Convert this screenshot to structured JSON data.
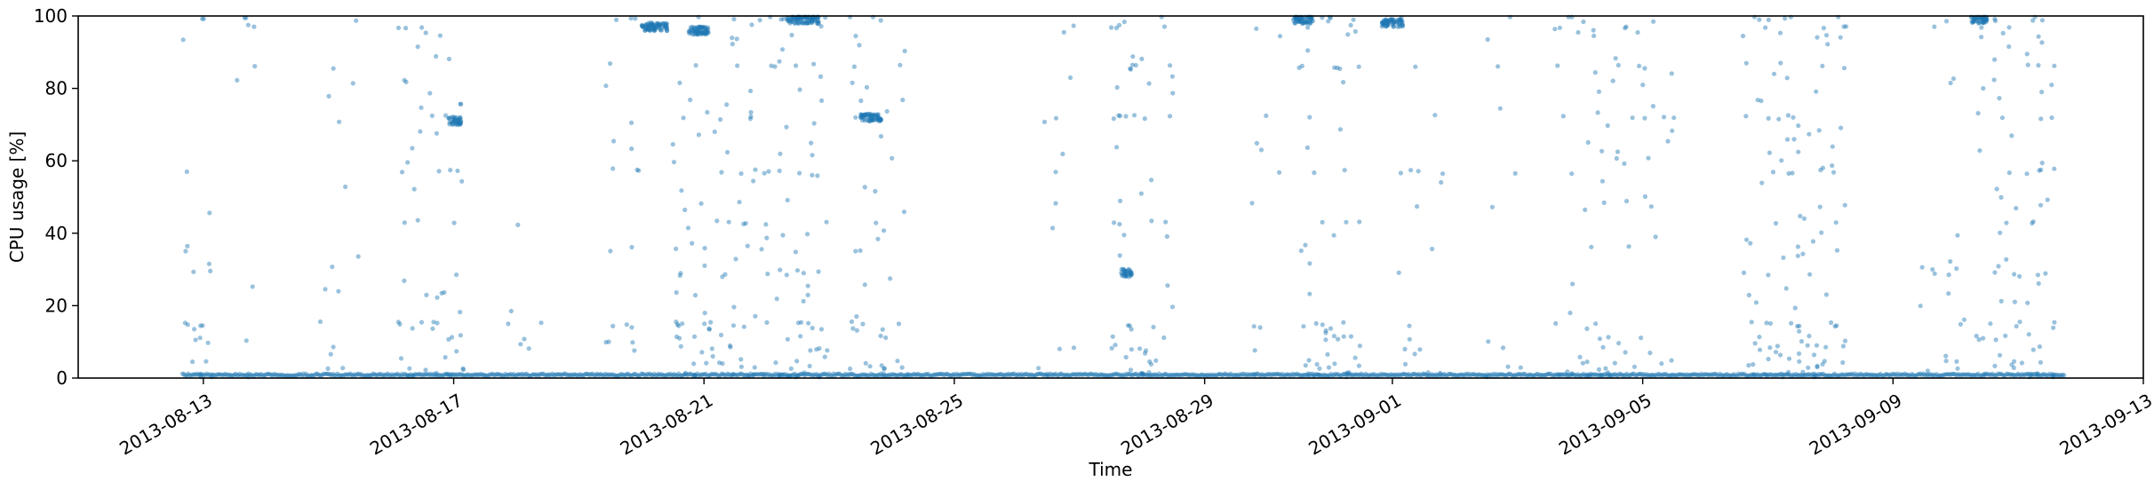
{
  "chart_data": {
    "type": "scatter",
    "xlabel": "Time",
    "ylabel": "CPU usage [%]",
    "ylim": [
      0,
      100
    ],
    "xlim": [
      "2013-08-11",
      "2013-09-13"
    ],
    "grid": false,
    "legend": "none",
    "point_color": "#1f77b4",
    "point_alpha": 0.45,
    "y_ticks": [
      {
        "value": 0,
        "label": "0"
      },
      {
        "value": 20,
        "label": "20"
      },
      {
        "value": 40,
        "label": "40"
      },
      {
        "value": 60,
        "label": "60"
      },
      {
        "value": 80,
        "label": "80"
      },
      {
        "value": 100,
        "label": "100"
      }
    ],
    "x_ticks": [
      {
        "value": "2013-08-13",
        "label": "2013-08-13"
      },
      {
        "value": "2013-08-17",
        "label": "2013-08-17"
      },
      {
        "value": "2013-08-21",
        "label": "2013-08-21"
      },
      {
        "value": "2013-08-25",
        "label": "2013-08-25"
      },
      {
        "value": "2013-08-29",
        "label": "2013-08-29"
      },
      {
        "value": "2013-09-01",
        "label": "2013-09-01"
      },
      {
        "value": "2013-09-05",
        "label": "2013-09-05"
      },
      {
        "value": "2013-09-09",
        "label": "2013-09-09"
      },
      {
        "value": "2013-09-13",
        "label": "2013-09-13"
      }
    ],
    "active_periods": [
      {
        "start": "2013-08-12T16:00",
        "end": "2013-08-13T05:00",
        "activity": 0.55
      },
      {
        "start": "2013-08-13T12:00",
        "end": "2013-08-13T20:00",
        "activity": 0.35
      },
      {
        "start": "2013-08-14T20:00",
        "end": "2013-08-15T12:00",
        "activity": 0.3
      },
      {
        "start": "2013-08-16T02:00",
        "end": "2013-08-17T04:00",
        "activity": 0.7
      },
      {
        "start": "2013-08-17T20:00",
        "end": "2013-08-18T10:00",
        "activity": 0.15
      },
      {
        "start": "2013-08-19T10:00",
        "end": "2013-08-20T00:00",
        "activity": 0.45
      },
      {
        "start": "2013-08-20T12:00",
        "end": "2013-08-21T16:00",
        "activity": 0.8
      },
      {
        "start": "2013-08-21T16:00",
        "end": "2013-08-23T00:00",
        "activity": 0.85
      },
      {
        "start": "2013-08-23T08:00",
        "end": "2013-08-24T06:00",
        "activity": 0.65
      },
      {
        "start": "2013-08-26T08:00",
        "end": "2013-08-26T22:00",
        "activity": 0.3
      },
      {
        "start": "2013-08-27T12:00",
        "end": "2013-08-28T12:00",
        "activity": 0.75
      },
      {
        "start": "2013-08-29T18:00",
        "end": "2013-08-30T08:00",
        "activity": 0.25
      },
      {
        "start": "2013-08-30T12:00",
        "end": "2013-08-31T12:00",
        "activity": 0.75
      },
      {
        "start": "2013-09-01T00:00",
        "end": "2013-09-01T20:00",
        "activity": 0.3
      },
      {
        "start": "2013-09-02T12:00",
        "end": "2013-09-03T02:00",
        "activity": 0.25
      },
      {
        "start": "2013-09-03T14:00",
        "end": "2013-09-04T18:00",
        "activity": 0.6
      },
      {
        "start": "2013-09-04T18:00",
        "end": "2013-09-05T12:00",
        "activity": 0.4
      },
      {
        "start": "2013-09-06T14:00",
        "end": "2013-09-08T06:00",
        "activity": 0.9
      },
      {
        "start": "2013-09-09T10:00",
        "end": "2013-09-10T04:00",
        "activity": 0.35
      },
      {
        "start": "2013-09-10T08:00",
        "end": "2013-09-11T14:00",
        "activity": 0.85
      }
    ],
    "dense_clusters": [
      {
        "start": "2013-08-20T00:00",
        "end": "2013-08-20T10:00",
        "y": 97
      },
      {
        "start": "2013-08-20T18:00",
        "end": "2013-08-21T02:00",
        "y": 96
      },
      {
        "start": "2013-08-22T08:00",
        "end": "2013-08-22T20:00",
        "y": 99
      },
      {
        "start": "2013-08-23T12:00",
        "end": "2013-08-23T20:00",
        "y": 72
      },
      {
        "start": "2013-08-16T22:00",
        "end": "2013-08-17T03:00",
        "y": 71
      },
      {
        "start": "2013-08-27T16:00",
        "end": "2013-08-27T20:00",
        "y": 29
      },
      {
        "start": "2013-08-30T10:00",
        "end": "2013-08-30T18:00",
        "y": 99
      },
      {
        "start": "2013-08-31T20:00",
        "end": "2013-09-01T04:00",
        "y": 98
      },
      {
        "start": "2013-09-10T06:00",
        "end": "2013-09-10T12:00",
        "y": 99
      }
    ],
    "baseline_y": 0.6,
    "data_start": "2013-08-12T16:00",
    "data_end": "2013-09-11T18:00"
  }
}
